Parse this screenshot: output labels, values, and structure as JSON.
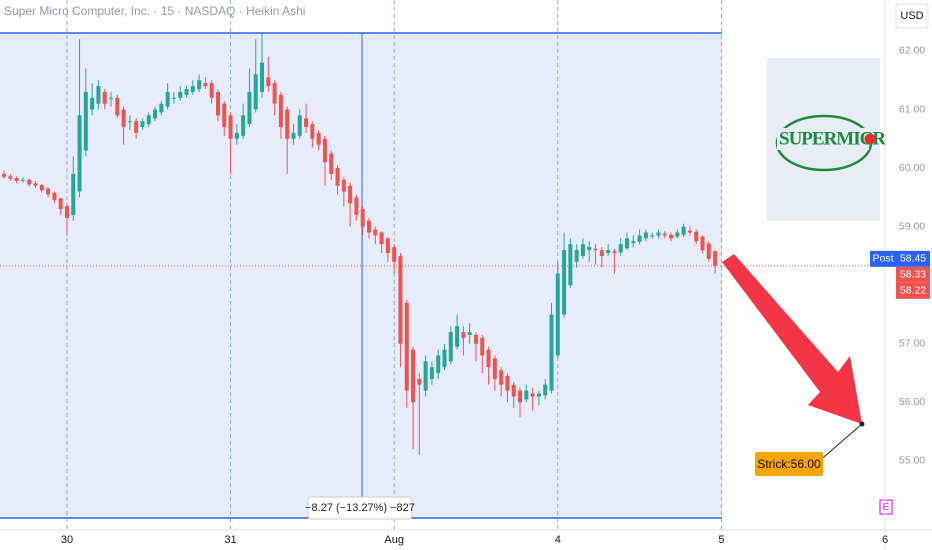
{
  "chart_data": {
    "type": "candlestick",
    "title": "Super Micro Computer, Inc. · 15 · NASDAQ · Heikin Ashi",
    "currency": "USD",
    "up_color": "#26a69a",
    "down_color": "#ef5350",
    "ohlc": [
      [
        59.9,
        59.95,
        59.82,
        59.85
      ],
      [
        59.86,
        59.9,
        59.78,
        59.82
      ],
      [
        59.83,
        59.86,
        59.74,
        59.78
      ],
      [
        59.79,
        59.84,
        59.75,
        59.8
      ],
      [
        59.8,
        59.82,
        59.68,
        59.72
      ],
      [
        59.74,
        59.78,
        59.66,
        59.7
      ],
      [
        59.71,
        59.73,
        59.58,
        59.62
      ],
      [
        59.65,
        59.68,
        59.5,
        59.55
      ],
      [
        59.58,
        59.6,
        59.4,
        59.45
      ],
      [
        59.48,
        59.5,
        59.2,
        59.3
      ],
      [
        59.35,
        59.4,
        58.85,
        59.15
      ],
      [
        59.2,
        60.2,
        59.1,
        59.9
      ],
      [
        59.6,
        62.2,
        59.5,
        60.9
      ],
      [
        60.3,
        61.7,
        60.2,
        61.3
      ],
      [
        61.0,
        61.45,
        60.9,
        61.2
      ],
      [
        61.1,
        61.5,
        61.0,
        61.4
      ],
      [
        61.3,
        61.35,
        61.0,
        61.1
      ],
      [
        61.2,
        61.3,
        61.05,
        61.2
      ],
      [
        61.2,
        61.25,
        60.85,
        60.9
      ],
      [
        61.0,
        61.05,
        60.4,
        60.7
      ],
      [
        60.8,
        60.9,
        60.65,
        60.8
      ],
      [
        60.8,
        60.85,
        60.5,
        60.6
      ],
      [
        60.7,
        60.85,
        60.65,
        60.8
      ],
      [
        60.75,
        60.95,
        60.7,
        60.9
      ],
      [
        60.85,
        61.05,
        60.8,
        61.0
      ],
      [
        60.95,
        61.15,
        60.9,
        61.1
      ],
      [
        61.05,
        61.45,
        61.0,
        61.3
      ],
      [
        61.2,
        61.3,
        61.1,
        61.2
      ],
      [
        61.2,
        61.4,
        61.15,
        61.3
      ],
      [
        61.25,
        61.4,
        61.2,
        61.35
      ],
      [
        61.3,
        61.5,
        61.25,
        61.4
      ],
      [
        61.35,
        61.6,
        61.3,
        61.5
      ],
      [
        61.45,
        61.55,
        61.35,
        61.4
      ],
      [
        61.45,
        61.5,
        61.1,
        61.2
      ],
      [
        61.3,
        61.35,
        60.8,
        60.9
      ],
      [
        61.1,
        61.15,
        60.55,
        60.7
      ],
      [
        60.9,
        60.95,
        59.9,
        60.5
      ],
      [
        60.5,
        60.75,
        60.4,
        60.6
      ],
      [
        60.55,
        61.1,
        60.5,
        60.9
      ],
      [
        60.75,
        61.7,
        60.7,
        61.3
      ],
      [
        61.0,
        62.2,
        60.95,
        61.6
      ],
      [
        61.3,
        62.3,
        61.2,
        61.8
      ],
      [
        61.55,
        61.9,
        61.3,
        61.4
      ],
      [
        61.45,
        61.5,
        60.9,
        61.1
      ],
      [
        61.25,
        61.3,
        60.5,
        60.7
      ],
      [
        61.0,
        61.05,
        59.9,
        60.5
      ],
      [
        60.5,
        60.75,
        60.4,
        60.6
      ],
      [
        60.55,
        61.0,
        60.5,
        60.9
      ],
      [
        60.85,
        61.1,
        60.6,
        60.7
      ],
      [
        60.75,
        60.8,
        60.35,
        60.5
      ],
      [
        60.6,
        60.65,
        60.3,
        60.4
      ],
      [
        60.5,
        60.55,
        59.7,
        60.1
      ],
      [
        60.25,
        60.3,
        59.8,
        59.9
      ],
      [
        60.0,
        60.05,
        59.55,
        59.7
      ],
      [
        59.8,
        59.85,
        59.35,
        59.6
      ],
      [
        59.7,
        59.75,
        59.0,
        59.4
      ],
      [
        59.5,
        59.55,
        59.1,
        59.2
      ],
      [
        59.3,
        59.35,
        58.85,
        59.0
      ],
      [
        59.1,
        59.15,
        58.8,
        58.9
      ],
      [
        58.95,
        59.0,
        58.7,
        58.85
      ],
      [
        58.9,
        58.92,
        58.55,
        58.7
      ],
      [
        58.8,
        58.82,
        58.4,
        58.55
      ],
      [
        58.65,
        58.7,
        58.2,
        58.4
      ],
      [
        58.5,
        58.55,
        56.6,
        57.0
      ],
      [
        57.7,
        57.75,
        55.9,
        56.2
      ],
      [
        56.9,
        56.95,
        55.2,
        56.0
      ],
      [
        56.4,
        56.5,
        55.1,
        56.3
      ],
      [
        56.2,
        56.8,
        56.1,
        56.7
      ],
      [
        56.4,
        56.7,
        56.3,
        56.6
      ],
      [
        56.5,
        56.9,
        56.4,
        56.8
      ],
      [
        56.6,
        57.0,
        56.55,
        56.9
      ],
      [
        56.7,
        57.3,
        56.65,
        57.2
      ],
      [
        56.95,
        57.5,
        56.9,
        57.3
      ],
      [
        57.2,
        57.3,
        56.8,
        57.1
      ],
      [
        57.15,
        57.35,
        57.0,
        57.2
      ],
      [
        57.15,
        57.2,
        56.7,
        57.0
      ],
      [
        57.1,
        57.15,
        56.5,
        56.8
      ],
      [
        56.9,
        56.95,
        56.3,
        56.6
      ],
      [
        56.75,
        56.8,
        56.2,
        56.4
      ],
      [
        56.55,
        56.6,
        56.1,
        56.3
      ],
      [
        56.45,
        56.5,
        56.0,
        56.2
      ],
      [
        56.3,
        56.35,
        55.9,
        56.1
      ],
      [
        56.2,
        56.25,
        55.75,
        56.0
      ],
      [
        56.05,
        56.3,
        56.0,
        56.2
      ],
      [
        56.15,
        56.25,
        55.85,
        56.1
      ],
      [
        56.1,
        56.2,
        55.95,
        56.15
      ],
      [
        56.12,
        56.4,
        56.05,
        56.3
      ],
      [
        56.2,
        57.7,
        56.15,
        57.5
      ],
      [
        56.8,
        58.4,
        56.75,
        58.2
      ],
      [
        57.5,
        58.9,
        57.45,
        58.6
      ],
      [
        58.0,
        58.8,
        57.95,
        58.7
      ],
      [
        58.4,
        58.7,
        58.3,
        58.6
      ],
      [
        58.5,
        58.8,
        58.45,
        58.7
      ],
      [
        58.6,
        58.75,
        58.4,
        58.65
      ],
      [
        58.62,
        58.7,
        58.35,
        58.6
      ],
      [
        58.6,
        58.65,
        58.3,
        58.5
      ],
      [
        58.55,
        58.7,
        58.5,
        58.6
      ],
      [
        58.58,
        58.62,
        58.2,
        58.55
      ],
      [
        58.56,
        58.8,
        58.5,
        58.7
      ],
      [
        58.63,
        58.9,
        58.6,
        58.8
      ],
      [
        58.72,
        58.85,
        58.65,
        58.75
      ],
      [
        58.74,
        58.95,
        58.7,
        58.85
      ],
      [
        58.8,
        58.95,
        58.75,
        58.9
      ],
      [
        58.85,
        58.9,
        58.8,
        58.85
      ],
      [
        58.85,
        58.95,
        58.8,
        58.9
      ],
      [
        58.88,
        58.92,
        58.8,
        58.85
      ],
      [
        58.86,
        58.9,
        58.75,
        58.8
      ],
      [
        58.83,
        58.95,
        58.8,
        58.9
      ],
      [
        58.86,
        59.05,
        58.82,
        59.0
      ],
      [
        58.93,
        59.0,
        58.85,
        58.9
      ],
      [
        58.91,
        58.95,
        58.7,
        58.75
      ],
      [
        58.83,
        58.85,
        58.55,
        58.6
      ],
      [
        58.71,
        58.75,
        58.4,
        58.45
      ],
      [
        58.58,
        58.6,
        58.2,
        58.33
      ]
    ],
    "xlim": [
      -0.64,
      140
    ],
    "xticks": [
      {
        "value": 10,
        "label": "30"
      },
      {
        "value": 36,
        "label": "31"
      },
      {
        "value": 62,
        "label": "Aug"
      },
      {
        "value": 88,
        "label": "4"
      },
      {
        "value": 114,
        "label": "5"
      },
      {
        "value": 140,
        "label": "6"
      }
    ],
    "ylim": [
      53.82,
      62.87
    ],
    "yticks": [
      {
        "value": 55,
        "label": "55.00"
      },
      {
        "value": 56,
        "label": "56.00"
      },
      {
        "value": 57,
        "label": "57.00"
      },
      {
        "value": 59,
        "label": "59.00"
      },
      {
        "value": 60,
        "label": "60.00"
      },
      {
        "value": 61,
        "label": "61.00"
      },
      {
        "value": 62,
        "label": "62.00"
      }
    ],
    "post_tag": "Post",
    "post_price": {
      "value": 58.45,
      "label": "58.45"
    },
    "last_price": {
      "value": 58.33,
      "label": "58.33"
    },
    "low_price": {
      "value": 58.22,
      "label": "58.22"
    },
    "measure_label": "−8.27 (−13.27%) −827",
    "annotation": "Strick:56.00",
    "earnings_marker": "E",
    "logo": "SUPERMICR"
  }
}
